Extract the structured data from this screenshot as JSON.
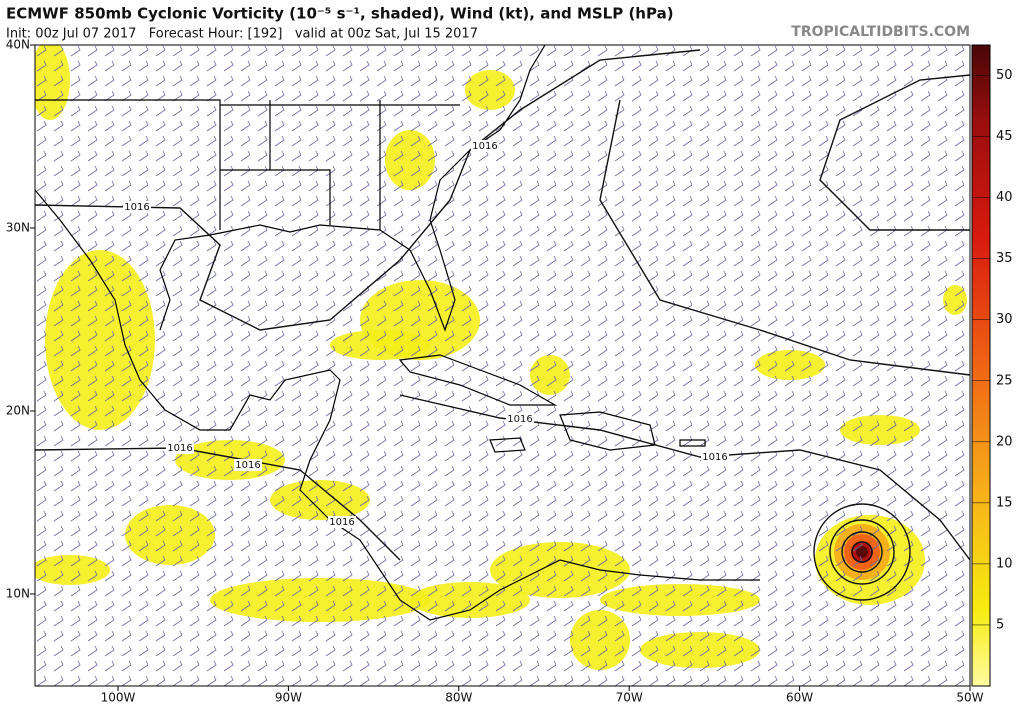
{
  "header": {
    "title": "ECMWF 850mb Cyclonic Vorticity (10⁻⁵ s⁻¹, shaded), Wind (kt), and MSLP (hPa)",
    "subtitle": "Init: 00z Jul 07 2017   Forecast Hour: [192]   valid at 00z Sat, Jul 15 2017",
    "site": "TROPICALTIDBITS.COM"
  },
  "map": {
    "lat_labels": [
      "40N",
      "30N",
      "20N",
      "10N"
    ],
    "lon_labels": [
      "100W",
      "90W",
      "80W",
      "70W",
      "60W",
      "50W"
    ],
    "isobar_labels": [
      "1016",
      "1016",
      "1016",
      "1016",
      "1016",
      "1016",
      "1016"
    ]
  },
  "colorbar": {
    "ticks": [
      5,
      10,
      15,
      20,
      25,
      30,
      35,
      40,
      45,
      50
    ]
  }
}
